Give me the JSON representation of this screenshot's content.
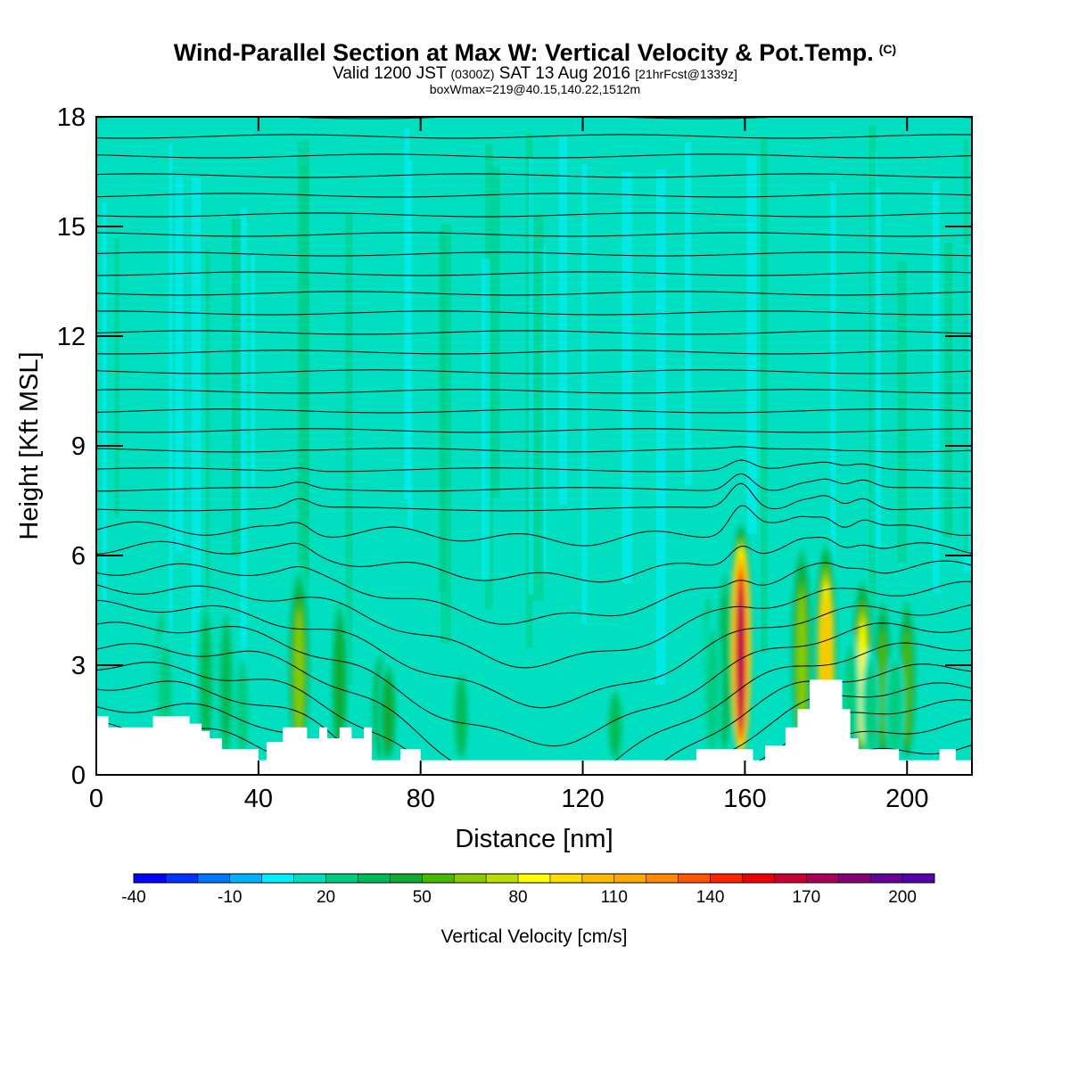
{
  "header": {
    "title": "Wind-Parallel Section at Max W: Vertical Velocity & Pot.Temp.",
    "title_mark": "(C)",
    "subtitle_a": "Valid 1200 JST",
    "subtitle_b": "(0300Z)",
    "subtitle_c": "SAT 13 Aug 2016",
    "subtitle_d": "[21hrFcst@1339z]",
    "line3": "boxWmax=219@40.15,140.22,1512m"
  },
  "chart_data": {
    "type": "heatmap",
    "xlabel": "Distance [nm]",
    "ylabel": "Height [Kft MSL]",
    "xlim": [
      0,
      216
    ],
    "ylim": [
      0,
      18
    ],
    "xticks": [
      0,
      40,
      80,
      120,
      160,
      200
    ],
    "yticks": [
      0,
      3,
      6,
      9,
      12,
      15,
      18
    ],
    "background_w": 10,
    "updrafts": [
      {
        "x": 16,
        "top": 5.0,
        "w": -25
      },
      {
        "x": 27,
        "top": 5.0,
        "w": 30
      },
      {
        "x": 32,
        "top": 4.8,
        "w": 25
      },
      {
        "x": 50,
        "top": 5.8,
        "w": 60
      },
      {
        "x": 60,
        "top": 5.0,
        "w": 35
      },
      {
        "x": 70,
        "top": 3.5,
        "w": 35
      },
      {
        "x": 72,
        "top": 3.2,
        "w": 40
      },
      {
        "x": 90,
        "top": 3.0,
        "w": 30
      },
      {
        "x": 128,
        "top": 2.5,
        "w": 30
      },
      {
        "x": 151,
        "top": 5.5,
        "w": -20
      },
      {
        "x": 155,
        "top": 6.0,
        "w": 30
      },
      {
        "x": 159,
        "top": 7.0,
        "w": 170
      },
      {
        "x": 174,
        "top": 6.5,
        "w": 60
      },
      {
        "x": 180,
        "top": 6.5,
        "w": 95
      },
      {
        "x": 189,
        "top": 5.5,
        "w": 80
      },
      {
        "x": 194,
        "top": 5.0,
        "w": 50
      },
      {
        "x": 200,
        "top": 5.0,
        "w": 45
      }
    ],
    "downdrafts": [
      {
        "x": 17,
        "top": 4.0,
        "w": -30
      },
      {
        "x": 36,
        "top": 3.5,
        "w": -20
      },
      {
        "x": 152,
        "top": 4.5,
        "w": -25
      },
      {
        "x": 186,
        "top": 4.0,
        "w": -25
      },
      {
        "x": 191,
        "top": 3.5,
        "w": -20
      },
      {
        "x": 197,
        "top": 3.5,
        "w": -30
      }
    ],
    "terrain": [
      [
        0,
        1.6
      ],
      [
        3,
        1.6
      ],
      [
        3,
        1.3
      ],
      [
        14,
        1.3
      ],
      [
        14,
        1.6
      ],
      [
        23,
        1.6
      ],
      [
        23,
        1.4
      ],
      [
        26,
        1.4
      ],
      [
        26,
        1.2
      ],
      [
        28,
        1.2
      ],
      [
        28,
        1.0
      ],
      [
        31,
        1.0
      ],
      [
        31,
        0.7
      ],
      [
        40,
        0.7
      ],
      [
        40,
        0.4
      ],
      [
        42,
        0.4
      ],
      [
        42,
        0.9
      ],
      [
        46,
        0.9
      ],
      [
        46,
        1.3
      ],
      [
        52,
        1.3
      ],
      [
        52,
        1.0
      ],
      [
        55,
        1.0
      ],
      [
        55,
        1.3
      ],
      [
        57,
        1.3
      ],
      [
        57,
        1.0
      ],
      [
        60,
        1.0
      ],
      [
        60,
        1.3
      ],
      [
        63,
        1.3
      ],
      [
        63,
        1.0
      ],
      [
        66,
        1.0
      ],
      [
        66,
        1.3
      ],
      [
        68,
        1.3
      ],
      [
        68,
        0.4
      ],
      [
        75,
        0.4
      ],
      [
        75,
        0.7
      ],
      [
        80,
        0.7
      ],
      [
        80,
        0.4
      ],
      [
        148,
        0.4
      ],
      [
        148,
        0.7
      ],
      [
        162,
        0.7
      ],
      [
        162,
        0.4
      ],
      [
        165,
        0.4
      ],
      [
        165,
        0.8
      ],
      [
        170,
        0.8
      ],
      [
        170,
        1.3
      ],
      [
        173,
        1.3
      ],
      [
        173,
        1.8
      ],
      [
        176,
        1.8
      ],
      [
        176,
        2.6
      ],
      [
        184,
        2.6
      ],
      [
        184,
        1.8
      ],
      [
        186,
        1.8
      ],
      [
        186,
        1.0
      ],
      [
        188,
        1.0
      ],
      [
        188,
        0.7
      ],
      [
        198,
        0.7
      ],
      [
        198,
        0.4
      ],
      [
        208,
        0.4
      ],
      [
        208,
        0.7
      ],
      [
        212,
        0.7
      ],
      [
        212,
        0.4
      ],
      [
        216,
        0.4
      ]
    ],
    "theta_levels": 34,
    "colorbar": {
      "label": "Vertical Velocity [cm/s]",
      "min": -40,
      "max": 210,
      "step": 10,
      "tick_values": [
        -40,
        -10,
        20,
        50,
        80,
        110,
        140,
        170,
        200
      ],
      "tick_labels": [
        "-40",
        "-10",
        "20",
        "50",
        "80",
        "110",
        "140",
        "170",
        "200"
      ],
      "colors": [
        "#0000ff",
        "#0033ff",
        "#0077ff",
        "#00b2ff",
        "#00f0ff",
        "#00e0c0",
        "#00cc80",
        "#00bb55",
        "#11aa33",
        "#44bb00",
        "#88cc00",
        "#bbdd00",
        "#ffff00",
        "#ffdd00",
        "#ffbb00",
        "#ffaa00",
        "#ff8800",
        "#ff5500",
        "#ff2200",
        "#ee0000",
        "#cc0033",
        "#aa0055",
        "#880077",
        "#660099",
        "#5500aa"
      ]
    }
  }
}
